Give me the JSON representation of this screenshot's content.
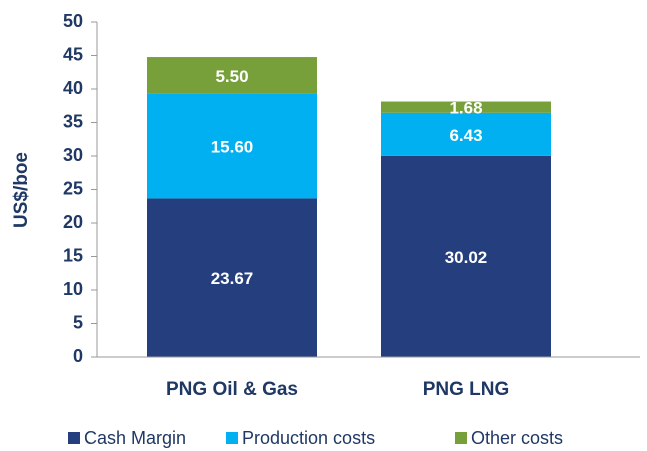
{
  "chart_data": {
    "type": "stacked_bar",
    "y_label": "US$/boe",
    "categories": [
      "PNG Oil & Gas",
      "PNG LNG"
    ],
    "series": [
      {
        "name": "Cash Margin",
        "color": "#253f7e",
        "values": [
          23.67,
          30.02
        ],
        "value_labels": [
          "23.67",
          "30.02"
        ]
      },
      {
        "name": "Production costs",
        "color": "#00b0f0",
        "values": [
          15.6,
          6.43
        ],
        "value_labels": [
          "15.60",
          "6.43"
        ]
      },
      {
        "name": "Other costs",
        "color": "#77a03b",
        "values": [
          5.5,
          1.68
        ],
        "value_labels": [
          "5.50",
          "1.68"
        ]
      }
    ],
    "ylim": [
      0,
      50
    ],
    "yticks": [
      0,
      5,
      10,
      15,
      20,
      25,
      30,
      35,
      40,
      45,
      50
    ],
    "legend": "bottom"
  }
}
